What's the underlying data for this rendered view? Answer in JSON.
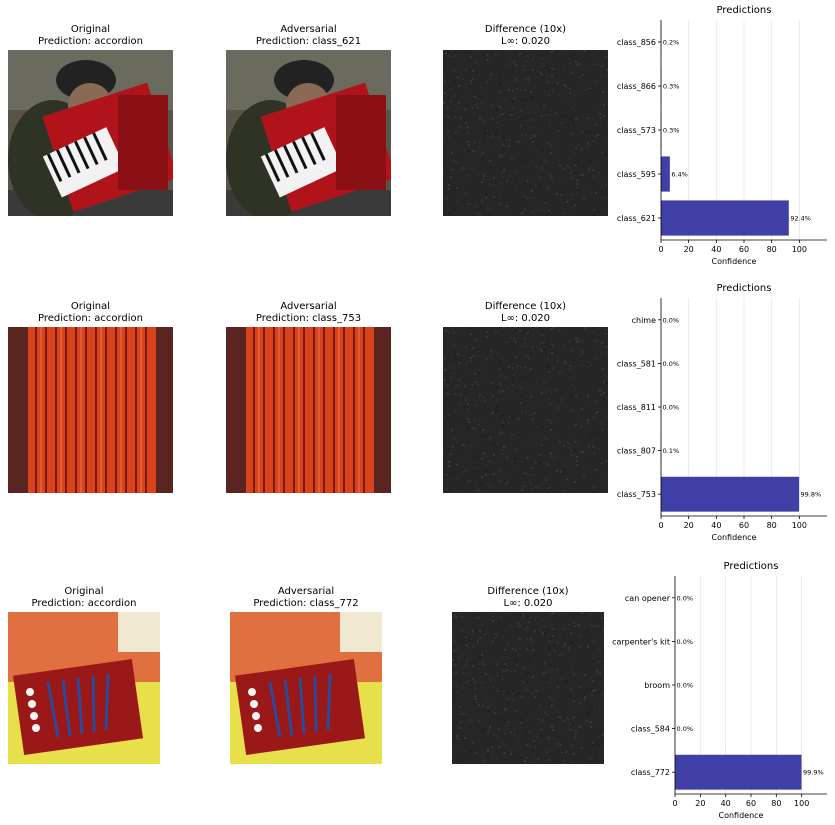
{
  "rows": [
    {
      "original": {
        "title": "Original",
        "prediction": "Prediction: accordion"
      },
      "adversarial": {
        "title": "Adversarial",
        "prediction": "Prediction: class_621"
      },
      "difference": {
        "title": "Difference (10x)",
        "linf": "L∞: 0.020"
      }
    },
    {
      "original": {
        "title": "Original",
        "prediction": "Prediction: accordion"
      },
      "adversarial": {
        "title": "Adversarial",
        "prediction": "Prediction: class_753"
      },
      "difference": {
        "title": "Difference (10x)",
        "linf": "L∞: 0.020"
      }
    },
    {
      "original": {
        "title": "Original",
        "prediction": "Prediction: accordion"
      },
      "adversarial": {
        "title": "Adversarial",
        "prediction": "Prediction: class_772"
      },
      "difference": {
        "title": "Difference (10x)",
        "linf": "L∞: 0.020"
      }
    }
  ],
  "colors": {
    "bar": "#3535a0",
    "diff_bg": "#262626"
  },
  "chart_data": [
    {
      "type": "bar",
      "orientation": "horizontal",
      "title": "Predictions",
      "xlabel": "Confidence",
      "xlim": [
        0,
        120
      ],
      "xticks": [
        0,
        20,
        40,
        60,
        80,
        100
      ],
      "categories": [
        "class_621",
        "class_595",
        "class_573",
        "class_866",
        "class_856"
      ],
      "values": [
        92.4,
        6.4,
        0.3,
        0.3,
        0.2
      ],
      "value_labels": [
        "92.4%",
        "6.4%",
        "0.3%",
        "0.3%",
        "0.2%"
      ]
    },
    {
      "type": "bar",
      "orientation": "horizontal",
      "title": "Predictions",
      "xlabel": "Confidence",
      "xlim": [
        0,
        120
      ],
      "xticks": [
        0,
        20,
        40,
        60,
        80,
        100
      ],
      "categories": [
        "class_753",
        "class_807",
        "class_811",
        "class_581",
        "chime"
      ],
      "values": [
        99.8,
        0.1,
        0.0,
        0.0,
        0.0
      ],
      "value_labels": [
        "99.8%",
        "0.1%",
        "0.0%",
        "0.0%",
        "0.0%"
      ]
    },
    {
      "type": "bar",
      "orientation": "horizontal",
      "title": "Predictions",
      "xlabel": "Confidence",
      "xlim": [
        0,
        120
      ],
      "xticks": [
        0,
        20,
        40,
        60,
        80,
        100
      ],
      "categories": [
        "class_772",
        "class_584",
        "broom",
        "carpenter's kit",
        "can opener"
      ],
      "values": [
        99.9,
        0.0,
        0.0,
        0.0,
        0.0
      ],
      "value_labels": [
        "99.9%",
        "0.0%",
        "0.0%",
        "0.0%",
        "0.0%"
      ]
    }
  ]
}
